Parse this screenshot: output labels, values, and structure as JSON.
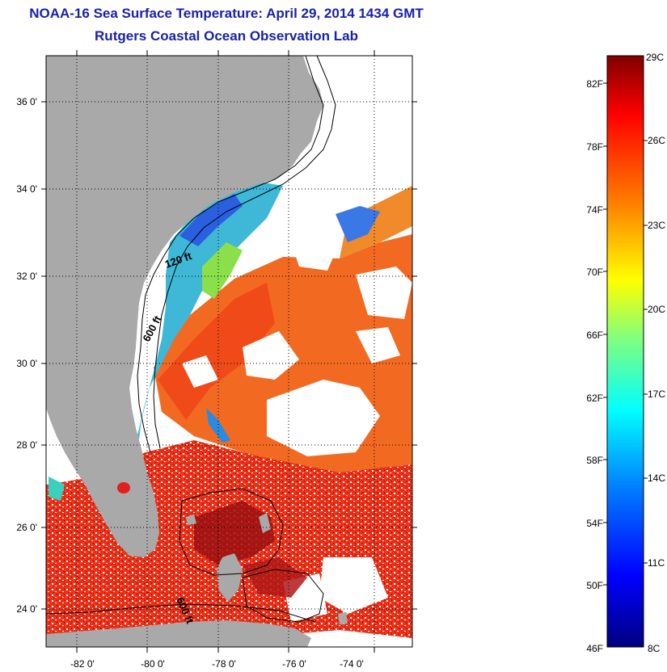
{
  "header": {
    "title": "NOAA-16 Sea Surface Temperature:  April 29, 2014 1434 GMT",
    "subtitle": "Rutgers Coastal Ocean Observation Lab"
  },
  "map": {
    "lon_labels": [
      "-82 0'",
      "-80 0'",
      "-78 0'",
      "-76 0'",
      "-74 0'"
    ],
    "lat_labels": [
      "36 0'",
      "34 0'",
      "32 0'",
      "30 0'",
      "28 0'",
      "26 0'",
      "24 0'"
    ],
    "isobath_labels": [
      "120 ft",
      "600 ft",
      "600 ft"
    ],
    "colors": {
      "land": "#a9a9a9",
      "cloud": "#ffffff",
      "warm": "#f05a1e",
      "cool": "#2a6fe0"
    }
  },
  "colorbar": {
    "fahrenheit_labels": [
      "82F",
      "78F",
      "74F",
      "70F",
      "66F",
      "62F",
      "58F",
      "54F",
      "50F",
      "46F"
    ],
    "celsius_labels": [
      "29C",
      "26C",
      "23C",
      "20C",
      "17C",
      "14C",
      "11C",
      "8C"
    ],
    "range_c": [
      8,
      29
    ],
    "colors": [
      "#00007f",
      "#0000ff",
      "#007fff",
      "#00ffff",
      "#7fff7f",
      "#ffff00",
      "#ff7f00",
      "#ff0000",
      "#7f0000"
    ]
  }
}
